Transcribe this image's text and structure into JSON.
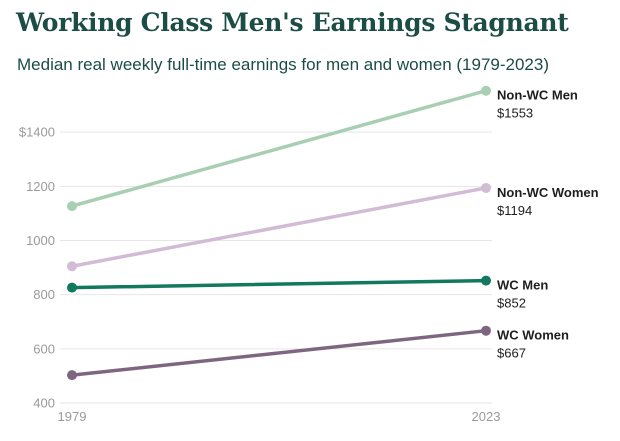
{
  "title": "Working Class Men's Earnings Stagnant",
  "subtitle": "Median real weekly full-time earnings for men and women (1979-2023)",
  "chart_data": {
    "type": "line",
    "x": [
      "1979",
      "2023"
    ],
    "ylim": [
      400,
      1600
    ],
    "yticks": [
      {
        "value": 400,
        "label": "400"
      },
      {
        "value": 600,
        "label": "600"
      },
      {
        "value": 800,
        "label": "800"
      },
      {
        "value": 1000,
        "label": "1000"
      },
      {
        "value": 1200,
        "label": "1200"
      },
      {
        "value": 1400,
        "label": "$1400"
      }
    ],
    "grid": true,
    "series": [
      {
        "key": "non-wc-men",
        "name": "Non-WC Men",
        "values": [
          1127,
          1553
        ],
        "end_label": "$1553",
        "color": "#a8cfb3"
      },
      {
        "key": "non-wc-women",
        "name": "Non-WC Women",
        "values": [
          905,
          1194
        ],
        "end_label": "$1194",
        "color": "#d2bbd4"
      },
      {
        "key": "wc-men",
        "name": "WC Men",
        "values": [
          826,
          852
        ],
        "end_label": "$852",
        "color": "#12795e"
      },
      {
        "key": "wc-women",
        "name": "WC Women",
        "values": [
          503,
          667
        ],
        "end_label": "$667",
        "color": "#7e6681"
      }
    ]
  }
}
